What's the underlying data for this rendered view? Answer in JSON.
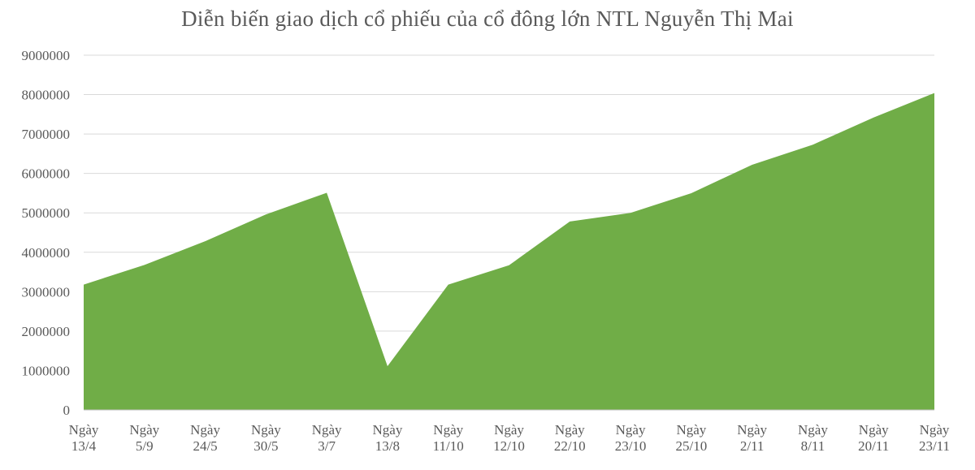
{
  "chart_data": {
    "type": "area",
    "title": "Diễn biến giao dịch cổ phiếu của cổ đông lớn NTL Nguyễn Thị Mai",
    "xlabel": "",
    "ylabel": "",
    "categories": [
      [
        "Ngày",
        "13/4"
      ],
      [
        "Ngày",
        "5/9"
      ],
      [
        "Ngày",
        "24/5"
      ],
      [
        "Ngày",
        "30/5"
      ],
      [
        "Ngày",
        "3/7"
      ],
      [
        "Ngày",
        "13/8"
      ],
      [
        "Ngày",
        "11/10"
      ],
      [
        "Ngày",
        "12/10"
      ],
      [
        "Ngày",
        "22/10"
      ],
      [
        "Ngày",
        "23/10"
      ],
      [
        "Ngày",
        "25/10"
      ],
      [
        "Ngày",
        "2/11"
      ],
      [
        "Ngày",
        "8/11"
      ],
      [
        "Ngày",
        "20/11"
      ],
      [
        "Ngày",
        "23/11"
      ]
    ],
    "values": [
      3180000,
      3680000,
      4280000,
      4960000,
      5510000,
      1110000,
      3180000,
      3670000,
      4780000,
      5000000,
      5500000,
      6220000,
      6730000,
      7420000,
      8040000
    ],
    "ylim": [
      0,
      9000000
    ],
    "yticks": [
      "0",
      "1000000",
      "2000000",
      "3000000",
      "4000000",
      "5000000",
      "6000000",
      "7000000",
      "8000000",
      "9000000"
    ],
    "grid": true,
    "legend": "none",
    "colors": {
      "fill": "#70AD47",
      "grid": "#D9D9D9",
      "axis": "#BFBFBF",
      "text": "#595959"
    }
  }
}
